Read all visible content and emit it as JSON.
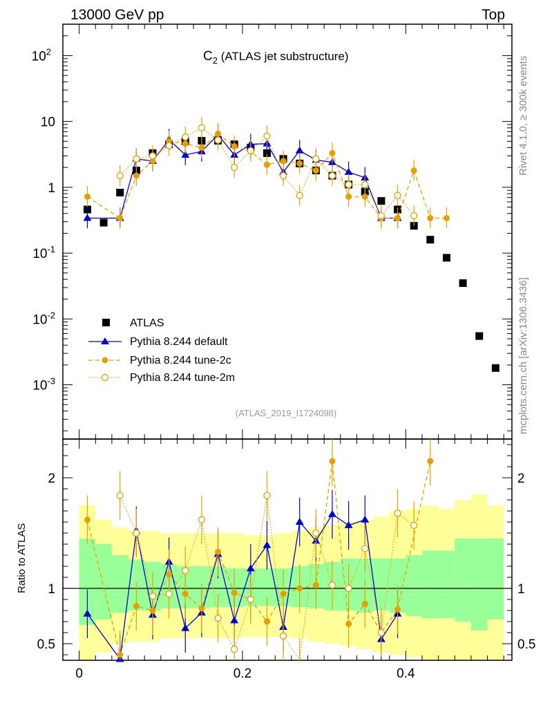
{
  "header": {
    "left": "13000 GeV pp",
    "right": "Top",
    "plot_title_main": "C",
    "plot_title_sub": "2",
    "plot_title_rest": " (ATLAS jet substructure)",
    "side_rivet": "Rivet 4.1.0, ≥ 300k events",
    "side_mcplots": "mcplots.cern.ch [arXiv:1306.3436]",
    "analysis_id": "(ATLAS_2019_I1724098)",
    "ratio_ylabel": "Ratio to ATLAS"
  },
  "colors": {
    "atlas": "#000000",
    "default": "#0000cc",
    "tune2c": "#e69f00",
    "tune2m": "#e69f00",
    "band_inner": "#99ff99",
    "band_outer": "#ffff99"
  },
  "chart_data": {
    "type": "scatter",
    "title": "C2 (ATLAS jet substructure)",
    "xlabel": "",
    "ylabel": "",
    "xlim": [
      -0.02,
      0.53
    ],
    "ylim": [
      0.00015,
      300
    ],
    "yscale": "log",
    "x_ticks": [
      "0",
      "0.2",
      "0.4"
    ],
    "y_ticks": [
      "10^-3",
      "10^-2",
      "10^-1",
      "1",
      "10",
      "10^2"
    ],
    "ratio_ylim": [
      0.35,
      2.35
    ],
    "ratio_ticks": [
      "0.5",
      "1",
      "2"
    ],
    "legend": [
      "ATLAS",
      "Pythia 8.244 default",
      "Pythia 8.244 tune-2c",
      "Pythia 8.244 tune-2m"
    ],
    "x": [
      0.01,
      0.03,
      0.05,
      0.07,
      0.09,
      0.11,
      0.13,
      0.15,
      0.17,
      0.19,
      0.21,
      0.23,
      0.25,
      0.27,
      0.29,
      0.31,
      0.33,
      0.35,
      0.37,
      0.39,
      0.41,
      0.43,
      0.45,
      0.47,
      0.49,
      0.51
    ],
    "series": [
      {
        "name": "ATLAS",
        "values": [
          0.46,
          0.29,
          0.83,
          1.8,
          3.3,
          4.5,
          5.0,
          5.1,
          5.1,
          4.5,
          4.0,
          3.3,
          2.7,
          2.3,
          1.8,
          1.5,
          1.1,
          0.86,
          0.62,
          0.46,
          0.26,
          0.16,
          0.085,
          0.035,
          0.0055,
          0.0018
        ]
      },
      {
        "name": "Pythia 8.244 default",
        "values": [
          0.34,
          null,
          0.34,
          2.7,
          2.5,
          5.3,
          3.1,
          3.5,
          6.3,
          3.1,
          4.5,
          4.6,
          1.7,
          3.6,
          2.6,
          2.4,
          1.7,
          1.4,
          0.34,
          0.34,
          null,
          null,
          null,
          null,
          null,
          null
        ]
      },
      {
        "name": "Pythia 8.244 tune-2c",
        "values": [
          0.72,
          null,
          0.34,
          1.5,
          2.5,
          5.0,
          4.6,
          4.0,
          6.5,
          4.2,
          3.5,
          2.2,
          2.5,
          2.3,
          1.8,
          3.3,
          0.72,
          0.72,
          0.34,
          0.34,
          1.8,
          0.34,
          0.34,
          null,
          null,
          null
        ]
      },
      {
        "name": "Pythia 8.244 tune-2m",
        "values": [
          null,
          null,
          1.5,
          2.7,
          3.0,
          4.3,
          5.8,
          8.0,
          5.2,
          2.0,
          3.6,
          6.0,
          1.5,
          0.75,
          2.7,
          1.5,
          1.1,
          1.1,
          0.37,
          0.75,
          0.37,
          null,
          null,
          null,
          null,
          null
        ]
      }
    ],
    "ratios": [
      {
        "name": "Pythia 8.244 default",
        "values": [
          0.77,
          null,
          0.36,
          1.52,
          0.76,
          1.24,
          0.64,
          0.78,
          1.31,
          0.71,
          1.18,
          1.39,
          0.65,
          1.6,
          1.43,
          1.67,
          1.57,
          1.62,
          0.54,
          0.77,
          null,
          null,
          null,
          null,
          null,
          null
        ]
      },
      {
        "name": "Pythia 8.244 tune-2c",
        "values": [
          1.62,
          null,
          0.4,
          0.84,
          0.8,
          1.13,
          0.95,
          0.82,
          1.33,
          0.96,
          0.9,
          0.7,
          0.95,
          1.0,
          1.03,
          2.15,
          0.68,
          0.86,
          0.6,
          0.81,
          null,
          2.15,
          null,
          null,
          null,
          null
        ]
      },
      {
        "name": "Pythia 8.244 tune-2m",
        "values": [
          null,
          null,
          1.84,
          1.5,
          0.93,
          0.95,
          1.16,
          1.62,
          0.73,
          0.45,
          0.9,
          1.84,
          0.57,
          0.33,
          1.5,
          1.03,
          1.0,
          1.36,
          0.6,
          1.68,
          1.57,
          null,
          null,
          null,
          null,
          null
        ]
      }
    ],
    "band_edges": [
      0.0,
      0.02,
      0.04,
      0.06,
      0.08,
      0.1,
      0.12,
      0.14,
      0.16,
      0.18,
      0.2,
      0.22,
      0.24,
      0.26,
      0.28,
      0.3,
      0.32,
      0.34,
      0.36,
      0.38,
      0.4,
      0.42,
      0.44,
      0.46,
      0.48,
      0.5,
      0.52
    ],
    "band_inner": [
      [
        0.67,
        1.45
      ],
      [
        0.72,
        1.4
      ],
      [
        0.78,
        1.3
      ],
      [
        0.8,
        1.26
      ],
      [
        0.8,
        1.24
      ],
      [
        0.82,
        1.22
      ],
      [
        0.82,
        1.2
      ],
      [
        0.82,
        1.2
      ],
      [
        0.83,
        1.2
      ],
      [
        0.83,
        1.18
      ],
      [
        0.84,
        1.18
      ],
      [
        0.84,
        1.18
      ],
      [
        0.84,
        1.18
      ],
      [
        0.83,
        1.2
      ],
      [
        0.82,
        1.22
      ],
      [
        0.8,
        1.24
      ],
      [
        0.8,
        1.27
      ],
      [
        0.78,
        1.27
      ],
      [
        0.8,
        1.27
      ],
      [
        0.78,
        1.27
      ],
      [
        0.75,
        1.3
      ],
      [
        0.73,
        1.34
      ],
      [
        0.73,
        1.34
      ],
      [
        0.7,
        1.45
      ],
      [
        0.62,
        1.45
      ],
      [
        0.72,
        1.45
      ]
    ],
    "band_outer": [
      [
        0.3,
        1.75
      ],
      [
        0.42,
        1.62
      ],
      [
        0.5,
        1.55
      ],
      [
        0.52,
        1.52
      ],
      [
        0.52,
        1.52
      ],
      [
        0.55,
        1.5
      ],
      [
        0.55,
        1.5
      ],
      [
        0.55,
        1.5
      ],
      [
        0.55,
        1.5
      ],
      [
        0.55,
        1.5
      ],
      [
        0.56,
        1.48
      ],
      [
        0.56,
        1.48
      ],
      [
        0.56,
        1.5
      ],
      [
        0.55,
        1.52
      ],
      [
        0.52,
        1.55
      ],
      [
        0.5,
        1.58
      ],
      [
        0.48,
        1.6
      ],
      [
        0.45,
        1.62
      ],
      [
        0.42,
        1.65
      ],
      [
        0.4,
        1.7
      ],
      [
        0.38,
        1.72
      ],
      [
        0.35,
        1.75
      ],
      [
        0.35,
        1.72
      ],
      [
        0.35,
        1.8
      ],
      [
        0.35,
        1.85
      ],
      [
        0.35,
        1.75
      ]
    ]
  }
}
